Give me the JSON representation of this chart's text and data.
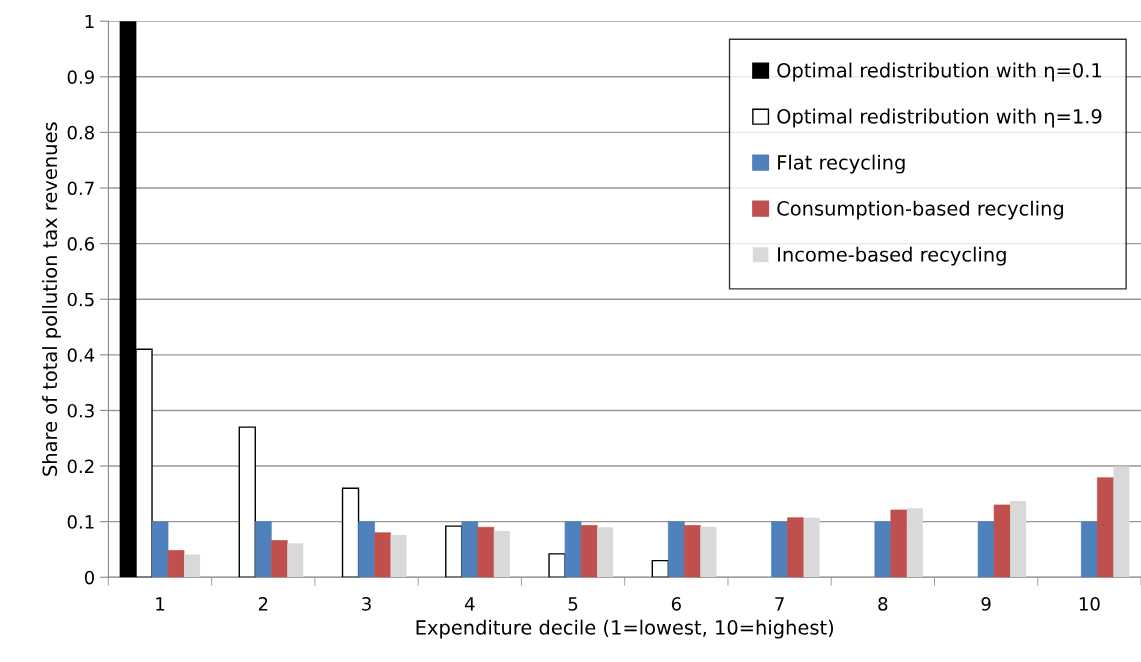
{
  "chart_data": {
    "type": "bar",
    "xlabel": "Expenditure decile (1=lowest, 10=highest)",
    "ylabel": "Share of total pollution tax revenues",
    "categories": [
      "1",
      "2",
      "3",
      "4",
      "5",
      "6",
      "7",
      "8",
      "9",
      "10"
    ],
    "series": [
      {
        "name": "Optimal redistribution with η=0.1",
        "color": "#000000",
        "values": [
          1,
          0,
          0,
          0,
          0,
          0,
          0,
          0,
          0,
          0
        ]
      },
      {
        "name": "Optimal redistribution with η=1.9",
        "color": "#ffffff",
        "values": [
          0.41,
          0.27,
          0.16,
          0.092,
          0.042,
          0.03,
          0,
          0,
          0,
          0
        ]
      },
      {
        "name": "Flat recycling",
        "color": "#4f81bd",
        "values": [
          0.1,
          0.1,
          0.1,
          0.1,
          0.1,
          0.1,
          0.1,
          0.1,
          0.1,
          0.1
        ]
      },
      {
        "name": "Consumption-based recycling",
        "color": "#c0504d",
        "values": [
          0.048,
          0.066,
          0.08,
          0.09,
          0.093,
          0.093,
          0.107,
          0.121,
          0.13,
          0.179
        ]
      },
      {
        "name": "Income-based recycling",
        "color": "#d9d9d9",
        "values": [
          0.041,
          0.061,
          0.076,
          0.083,
          0.09,
          0.091,
          0.107,
          0.124,
          0.137,
          0.199
        ]
      }
    ],
    "ylim": [
      0,
      1
    ],
    "yticks": [
      0,
      0.1,
      0.2,
      0.3,
      0.4,
      0.5,
      0.6,
      0.7,
      0.8,
      0.9,
      1
    ],
    "grid": "y",
    "legend": "top right"
  }
}
